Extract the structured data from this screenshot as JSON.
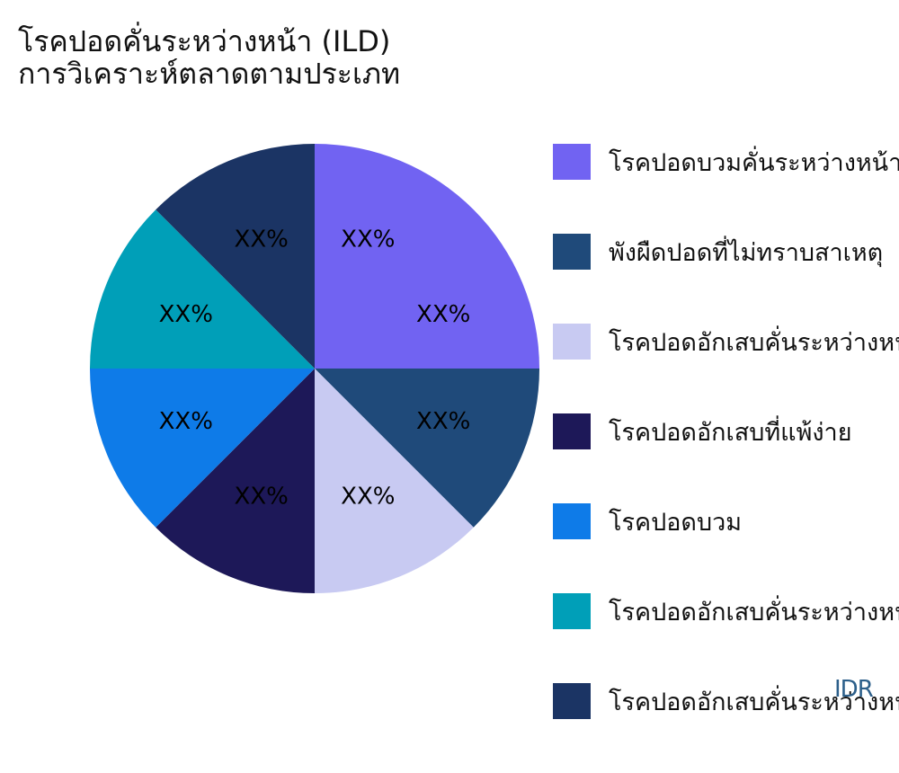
{
  "chart_data": {
    "type": "pie",
    "title_lines": [
      "โรคปอดคั่นระหว่างหน้า (ILD)",
      "การวิเคราะห์ตลาดตามประเภท"
    ],
    "slices": [
      {
        "name": "โรคปอดบวมคั่นระหว่างหน้า",
        "value": 25,
        "label": "XX%",
        "color": "#7163f2"
      },
      {
        "name": "พังผืดปอดที่ไม่ทราบสาเหตุ",
        "value": 12.5,
        "label": "XX%",
        "color": "#1f4a7a"
      },
      {
        "name": "โรคปอดอักเสบคั่นระหว่างหน้า",
        "value": 12.5,
        "label": "XX%",
        "color": "#c8caf2"
      },
      {
        "name": "โรคปอดอักเสบที่แพ้ง่าย",
        "value": 12.5,
        "label": "XX%",
        "color": "#1d1858"
      },
      {
        "name": "โรคปอดบวม",
        "value": 12.5,
        "label": "XX%",
        "color": "#0e7be8"
      },
      {
        "name": "โรคปอดอักเสบคั่นระหว่างหน้า",
        "value": 12.5,
        "label": "XX%",
        "color": "#009fb8"
      },
      {
        "name": "โรคปอดอักเสบคั่นระหว่างหน้า",
        "value": 12.5,
        "label": "XX%",
        "color": "#1b3464"
      }
    ],
    "start_angle_deg": 0,
    "direction": "clockwise",
    "legend_position": "right"
  },
  "watermark": "IDR"
}
